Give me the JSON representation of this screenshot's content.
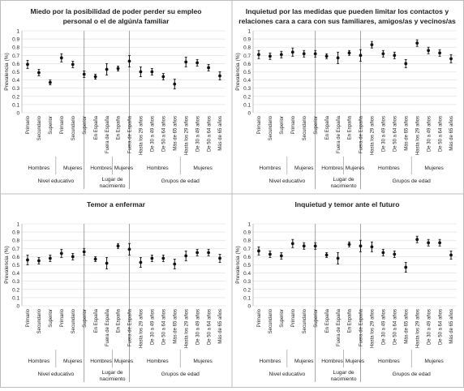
{
  "common": {
    "ylabel": "Prevalencia (%)",
    "yticks": [
      0,
      0.1,
      0.2,
      0.3,
      0.4,
      0.5,
      0.6,
      0.7,
      0.8,
      0.9,
      1
    ],
    "ylim": [
      0,
      1
    ],
    "categories": [
      "Primario",
      "Secundario",
      "Superior",
      "Primario",
      "Secundario",
      "Superior",
      "En España",
      "Fuera de España",
      "En España",
      "Fuera de España",
      "Hasta los 29 años",
      "De 30 a 49 años",
      "De 50 a 64 años",
      "Más de 65 años",
      "Hasta los 29 años",
      "De 30 a 49 años",
      "De 50 a 64 años",
      "Más de 65 años"
    ],
    "sex_labels": [
      "Hombres",
      "Mujeres",
      "Hombres",
      "Mujeres",
      "Hombres",
      "Mujeres"
    ],
    "group_labels": [
      "Nivel educativo",
      "Lugar de nacimiento",
      "Grupos de edad"
    ]
  },
  "chart_data": [
    {
      "type": "scatter",
      "title": "Miedo por la posibilidad de poder perder su empleo personal o el de algún/a familiar",
      "title_lines": [
        "Miedo por la posibilidad de poder perder su empleo",
        "personal o el de algún/a familiar"
      ],
      "values": [
        0.59,
        0.49,
        0.37,
        0.67,
        0.59,
        0.47,
        0.44,
        0.53,
        0.54,
        0.63,
        0.5,
        0.5,
        0.44,
        0.35,
        0.62,
        0.61,
        0.55,
        0.45
      ],
      "errors": [
        0.05,
        0.04,
        0.03,
        0.05,
        0.04,
        0.04,
        0.03,
        0.07,
        0.03,
        0.07,
        0.06,
        0.04,
        0.04,
        0.06,
        0.06,
        0.04,
        0.04,
        0.05
      ]
    },
    {
      "type": "scatter",
      "title": "Inquietud por las medidas que pueden limitar los contactos y relaciones cara a cara con sus familiares, amigos/as y vecinos/as",
      "title_lines": [
        "Inquietud por las medidas que pueden limitar los contactos y",
        "relaciones cara a cara con sus familiares, amigos/as y vecinos/as"
      ],
      "values": [
        0.71,
        0.69,
        0.71,
        0.74,
        0.72,
        0.72,
        0.69,
        0.67,
        0.73,
        0.7,
        0.83,
        0.72,
        0.7,
        0.6,
        0.85,
        0.76,
        0.73,
        0.66
      ],
      "errors": [
        0.05,
        0.04,
        0.04,
        0.05,
        0.04,
        0.04,
        0.03,
        0.07,
        0.03,
        0.07,
        0.04,
        0.04,
        0.04,
        0.05,
        0.04,
        0.04,
        0.04,
        0.05
      ]
    },
    {
      "type": "scatter",
      "title": "Temor a enfermar",
      "title_lines": [
        "Temor a enfermar"
      ],
      "values": [
        0.56,
        0.55,
        0.58,
        0.64,
        0.6,
        0.66,
        0.57,
        0.52,
        0.73,
        0.69,
        0.53,
        0.58,
        0.58,
        0.51,
        0.61,
        0.65,
        0.65,
        0.58
      ],
      "errors": [
        0.06,
        0.04,
        0.04,
        0.05,
        0.04,
        0.04,
        0.03,
        0.07,
        0.03,
        0.07,
        0.06,
        0.04,
        0.04,
        0.06,
        0.06,
        0.04,
        0.04,
        0.05
      ]
    },
    {
      "type": "scatter",
      "title": "Inquietud y temor ante el futuro",
      "title_lines": [
        "Inquietud y temor ante el futuro"
      ],
      "values": [
        0.67,
        0.63,
        0.61,
        0.76,
        0.73,
        0.73,
        0.62,
        0.58,
        0.75,
        0.73,
        0.72,
        0.65,
        0.63,
        0.47,
        0.81,
        0.77,
        0.77,
        0.62
      ],
      "errors": [
        0.05,
        0.04,
        0.04,
        0.05,
        0.04,
        0.04,
        0.03,
        0.07,
        0.03,
        0.07,
        0.06,
        0.04,
        0.04,
        0.06,
        0.04,
        0.04,
        0.04,
        0.05
      ]
    }
  ]
}
